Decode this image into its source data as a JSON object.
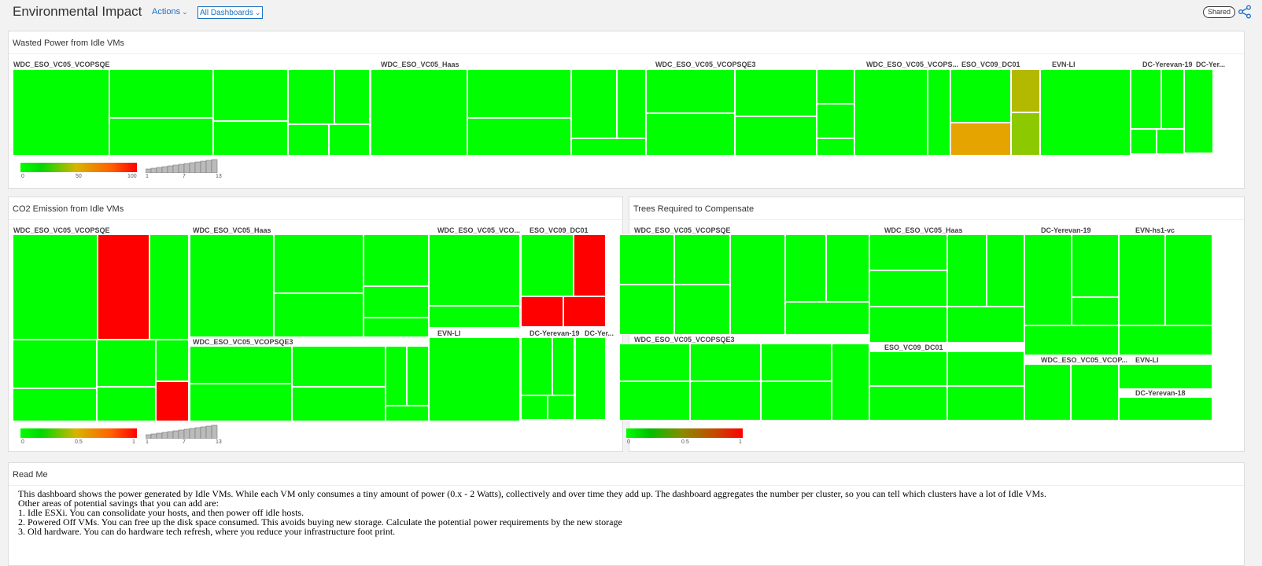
{
  "header": {
    "title": "Environmental Impact",
    "actions_label": "Actions",
    "dashboards_select": "All Dashboards",
    "shared_badge": "Shared"
  },
  "panels": {
    "wasted_power": {
      "title": "Wasted Power from Idle VMs",
      "groups": [
        "WDC_ESO_VC05_VCOPSQE",
        "WDC_ESO_VC05_Haas",
        "WDC_ESO_VC05_VCOPSQE3",
        "WDC_ESO_VC05_VCOPS...",
        "ESO_VC09_DC01",
        "EVN-LI",
        "DC-Yerevan-19",
        "DC-Yer..."
      ],
      "legend": {
        "min": "0",
        "mid": "50",
        "max": "100",
        "bars_min": "1",
        "bars_mid": "7",
        "bars_max": "13"
      }
    },
    "co2": {
      "title": "CO2 Emission from Idle VMs",
      "groups": [
        "WDC_ESO_VC05_VCOPSQE",
        "WDC_ESO_VC05_Haas",
        "WDC_ESO_VC05_VCO...",
        "ESO_VC09_DC01",
        "WDC_ESO_VC05_VCOPSQE3",
        "EVN-LI",
        "DC-Yerevan-19",
        "DC-Yer..."
      ],
      "legend": {
        "min": "0",
        "mid": "0.5",
        "max": "1",
        "bars_min": "1",
        "bars_mid": "7",
        "bars_max": "13"
      }
    },
    "trees": {
      "title": "Trees Required to Compensate",
      "groups": [
        "WDC_ESO_VC05_VCOPSQE",
        "WDC_ESO_VC05_Haas",
        "DC-Yerevan-19",
        "EVN-hs1-vc",
        "WDC_ESO_VC05_VCOPSQE3",
        "ESO_VC09_DC01",
        "WDC_ESO_VC05_VCOP...",
        "EVN-LI",
        "DC-Yerevan-18"
      ],
      "legend": {
        "min": "0",
        "mid": "0.5",
        "max": "1"
      }
    },
    "readme": {
      "title": "Read Me",
      "lines": [
        "This dashboard shows the power generated by Idle VMs. While each VM only consumes a tiny amount of power (0.x - 2 Watts), collectively and over time they add up. The dashboard aggregates the number per cluster, so you can tell which clusters have a lot of Idle VMs.",
        "Other areas of potential savings that you can add are:",
        "1. Idle ESXi. You can consolidate your hosts, and then power off idle hosts.",
        "2. Powered Off VMs. You can free up the disk space consumed. This avoids buying new storage. Calculate the potential power requirements by the new storage",
        "3. Old hardware. You can do hardware tech refresh, where you reduce your infrastructure foot print."
      ]
    }
  },
  "colors": {
    "good": "#00ff00",
    "bad": "#ff0000",
    "accent": "#1a6fbf"
  },
  "icons": {
    "share": "share-icon",
    "dropdown": "chevron-down-icon"
  }
}
